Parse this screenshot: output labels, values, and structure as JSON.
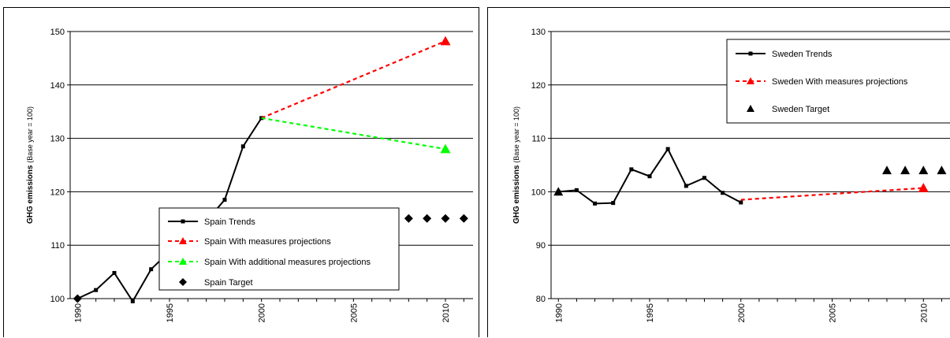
{
  "chart_data": [
    {
      "type": "line",
      "ylabel": "GHG emissions",
      "ylabel_suffix": "(Base year = 100)",
      "xlim": [
        1989.6,
        2011.5
      ],
      "ylim": [
        100,
        150
      ],
      "yticks": [
        100,
        110,
        120,
        130,
        140,
        150
      ],
      "xticks": [
        1990,
        1995,
        2000,
        2005,
        2010
      ],
      "grid": true,
      "legend_position": "bottom-center",
      "series": [
        {
          "name": "Spain  Trends",
          "style": "line",
          "marker": "square",
          "color": "#000000",
          "x": [
            1990,
            1991,
            1992,
            1993,
            1994,
            1995,
            1996,
            1997,
            1998,
            1999,
            2000
          ],
          "y": [
            100,
            101.6,
            104.8,
            99.5,
            105.5,
            108.8,
            114.2,
            114.5,
            118.5,
            128.5,
            133.8
          ]
        },
        {
          "name": "Spain  With measures projections",
          "style": "dash",
          "marker": "triangle",
          "color": "#ff0000",
          "x": [
            2000,
            2010
          ],
          "y": [
            133.8,
            148.2
          ]
        },
        {
          "name": "Spain  With additional measures projections",
          "style": "dash",
          "marker": "triangle",
          "color": "#00ff00",
          "x": [
            2000,
            2010
          ],
          "y": [
            133.8,
            128
          ]
        },
        {
          "name": "Spain  Target",
          "style": "points",
          "marker": "diamond",
          "color": "#000000",
          "x": [
            1990,
            2008,
            2009,
            2010,
            2011
          ],
          "y": [
            100,
            115,
            115,
            115,
            115
          ]
        }
      ]
    },
    {
      "type": "line",
      "ylabel": "GHG emissions",
      "ylabel_suffix": "(Base year = 100)",
      "xlim": [
        1989.6,
        2011.5
      ],
      "ylim": [
        80,
        130
      ],
      "yticks": [
        80,
        90,
        100,
        110,
        120,
        130
      ],
      "xticks": [
        1990,
        1995,
        2000,
        2005,
        2010
      ],
      "grid": true,
      "legend_position": "top-right",
      "series": [
        {
          "name": "Sweden  Trends",
          "style": "line",
          "marker": "square",
          "color": "#000000",
          "x": [
            1990,
            1991,
            1992,
            1993,
            1994,
            1995,
            1996,
            1997,
            1998,
            1999,
            2000
          ],
          "y": [
            100,
            100.3,
            97.8,
            97.9,
            104.2,
            102.9,
            108,
            101.1,
            102.6,
            99.8,
            98
          ]
        },
        {
          "name": "Sweden  With measures projections",
          "style": "dash",
          "marker": "triangle",
          "color": "#ff0000",
          "x": [
            2000,
            2010
          ],
          "y": [
            98.5,
            100.7
          ]
        },
        {
          "name": "Sweden  Target",
          "style": "points",
          "marker": "triangle",
          "color": "#000000",
          "x": [
            1990,
            2008,
            2009,
            2010,
            2011
          ],
          "y": [
            100,
            104,
            104,
            104,
            104
          ]
        }
      ]
    }
  ]
}
